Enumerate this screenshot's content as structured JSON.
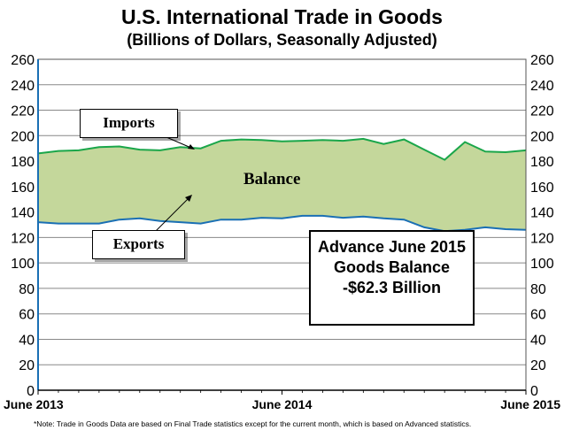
{
  "title": "U.S. International Trade in Goods",
  "subtitle": "(Billions of Dollars, Seasonally Adjusted)",
  "note": "*Note: Trade in Goods Data are based on Final Trade statistics except for the current month, which is based on Advanced statistics.",
  "labels": {
    "imports": "Imports",
    "exports": "Exports",
    "balance": "Balance"
  },
  "callout": {
    "line1": "Advance June 2015",
    "line2": "Goods Balance",
    "line3": "-$62.3 Billion"
  },
  "colors": {
    "imports_line": "#1aa64a",
    "exports_line": "#1a6fb4",
    "balance_fill": "#c4d79b",
    "plot_bg": "#ffffff",
    "grid": "#888888"
  },
  "chart_data": {
    "type": "area",
    "title": "U.S. International Trade in Goods",
    "subtitle": "(Billions of Dollars, Seasonally Adjusted)",
    "ylim": [
      0,
      260
    ],
    "yticks": [
      0,
      20,
      40,
      60,
      80,
      100,
      120,
      140,
      160,
      180,
      200,
      220,
      240,
      260
    ],
    "ytick_labels": [
      "0",
      "20",
      "40",
      "60",
      "80",
      "100",
      "120",
      "140",
      "160",
      "180",
      "200",
      "220",
      "240",
      "260"
    ],
    "xtick_labels": [
      "June 2013",
      "June 2014",
      "June 2015"
    ],
    "xtick_positions": [
      0,
      12,
      24
    ],
    "grid": true,
    "x": [
      0,
      1,
      2,
      3,
      4,
      5,
      6,
      7,
      8,
      9,
      10,
      11,
      12,
      13,
      14,
      15,
      16,
      17,
      18,
      19,
      20,
      21,
      22,
      23,
      24
    ],
    "series": [
      {
        "name": "Imports",
        "values": [
          186,
          188,
          188.5,
          191,
          191.5,
          189,
          188.5,
          191,
          190,
          196,
          197,
          196.5,
          195.5,
          196,
          196.5,
          196,
          197.5,
          193.5,
          197,
          189,
          181,
          195,
          187.5,
          187,
          188.5
        ]
      },
      {
        "name": "Exports",
        "values": [
          132,
          131,
          131,
          131,
          134,
          135,
          133,
          132,
          131,
          134,
          134,
          135.5,
          135,
          137,
          137,
          135.5,
          136.5,
          135,
          134,
          128,
          125,
          126,
          128,
          126.5,
          126
        ]
      }
    ]
  }
}
